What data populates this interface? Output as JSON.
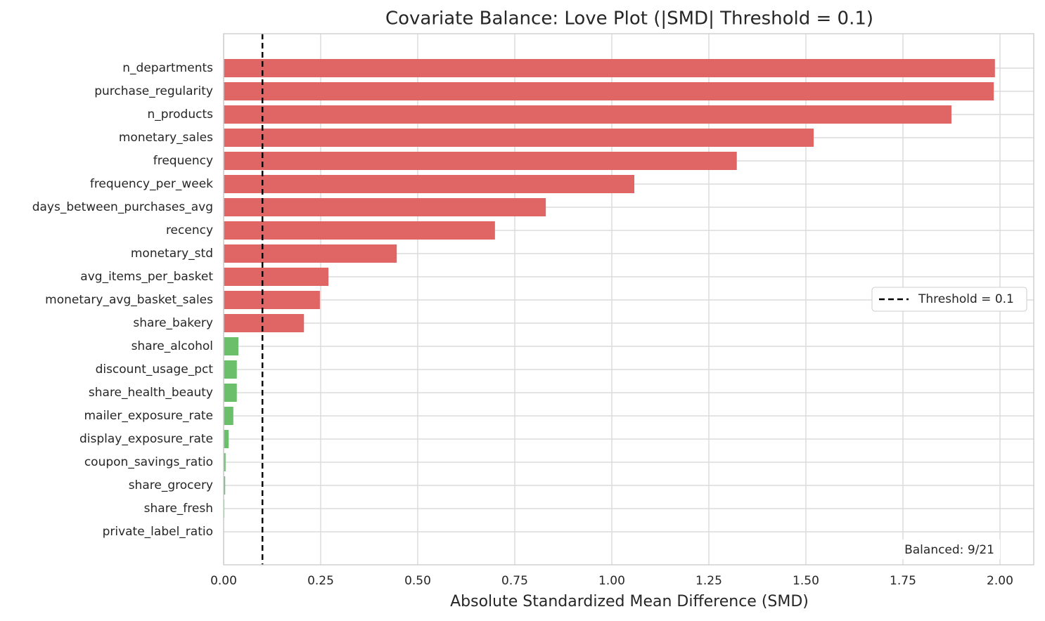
{
  "chart_data": {
    "type": "barh",
    "title": "Covariate Balance: Love Plot (|SMD| Threshold = 0.1)",
    "x_label": "Absolute Standardized Mean Difference (SMD)",
    "categories": [
      "n_departments",
      "purchase_regularity",
      "n_products",
      "monetary_sales",
      "frequency",
      "frequency_per_week",
      "days_between_purchases_avg",
      "recency",
      "monetary_std",
      "avg_items_per_basket",
      "monetary_avg_basket_sales",
      "share_bakery",
      "share_alcohol",
      "discount_usage_pct",
      "share_health_beauty",
      "mailer_exposure_rate",
      "display_exposure_rate",
      "coupon_savings_ratio",
      "share_grocery",
      "share_fresh",
      "private_label_ratio"
    ],
    "values": [
      1.987,
      1.984,
      1.875,
      1.52,
      1.322,
      1.058,
      0.83,
      0.699,
      0.446,
      0.27,
      0.248,
      0.207,
      0.038,
      0.034,
      0.034,
      0.025,
      0.013,
      0.005,
      0.004,
      0.002,
      0.001
    ],
    "threshold": 0.1,
    "color_above": "#e06666",
    "color_below": "#6bbf6b",
    "xlim": [
      0,
      2.087
    ],
    "xticks": [
      {
        "value": 0,
        "label": "0.00"
      },
      {
        "value": 0.25,
        "label": "0.25"
      },
      {
        "value": 0.5,
        "label": "0.50"
      },
      {
        "value": 0.75,
        "label": "0.75"
      },
      {
        "value": 1,
        "label": "1.00"
      },
      {
        "value": 1.25,
        "label": "1.25"
      },
      {
        "value": 1.5,
        "label": "1.50"
      },
      {
        "value": 1.75,
        "label": "1.75"
      },
      {
        "value": 2,
        "label": "2.00"
      }
    ],
    "grid": true,
    "legend": {
      "label": "Threshold = 0.1",
      "position": "center right"
    },
    "annotation": "Balanced: 9/21"
  }
}
